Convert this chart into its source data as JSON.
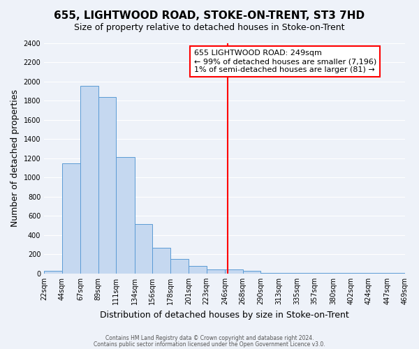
{
  "title": "655, LIGHTWOOD ROAD, STOKE-ON-TRENT, ST3 7HD",
  "subtitle": "Size of property relative to detached houses in Stoke-on-Trent",
  "xlabel": "Distribution of detached houses by size in Stoke-on-Trent",
  "ylabel": "Number of detached properties",
  "bar_edges": [
    22,
    44,
    67,
    89,
    111,
    134,
    156,
    178,
    201,
    223,
    246,
    268,
    290,
    313,
    335,
    357,
    380,
    402,
    424,
    447,
    469
  ],
  "bar_heights": [
    25,
    1150,
    1950,
    1840,
    1215,
    515,
    265,
    150,
    80,
    45,
    40,
    25,
    10,
    5,
    5,
    5,
    5,
    5,
    5,
    5
  ],
  "tick_labels": [
    "22sqm",
    "44sqm",
    "67sqm",
    "89sqm",
    "111sqm",
    "134sqm",
    "156sqm",
    "178sqm",
    "201sqm",
    "223sqm",
    "246sqm",
    "268sqm",
    "290sqm",
    "313sqm",
    "335sqm",
    "357sqm",
    "380sqm",
    "402sqm",
    "424sqm",
    "447sqm",
    "469sqm"
  ],
  "bar_color": "#c5d8f0",
  "bar_edge_color": "#5b9bd5",
  "vline_x": 249,
  "vline_color": "red",
  "annotation_title": "655 LIGHTWOOD ROAD: 249sqm",
  "annotation_line1": "← 99% of detached houses are smaller (7,196)",
  "annotation_line2": "1% of semi-detached houses are larger (81) →",
  "annotation_box_color": "red",
  "ylim": [
    0,
    2400
  ],
  "yticks": [
    0,
    200,
    400,
    600,
    800,
    1000,
    1200,
    1400,
    1600,
    1800,
    2000,
    2200,
    2400
  ],
  "footnote1": "Contains HM Land Registry data © Crown copyright and database right 2024.",
  "footnote2": "Contains public sector information licensed under the Open Government Licence v3.0.",
  "background_color": "#eef2f9",
  "grid_color": "#ffffff",
  "title_fontsize": 11,
  "subtitle_fontsize": 9,
  "axis_label_fontsize": 9,
  "tick_fontsize": 7,
  "annotation_fontsize": 8
}
